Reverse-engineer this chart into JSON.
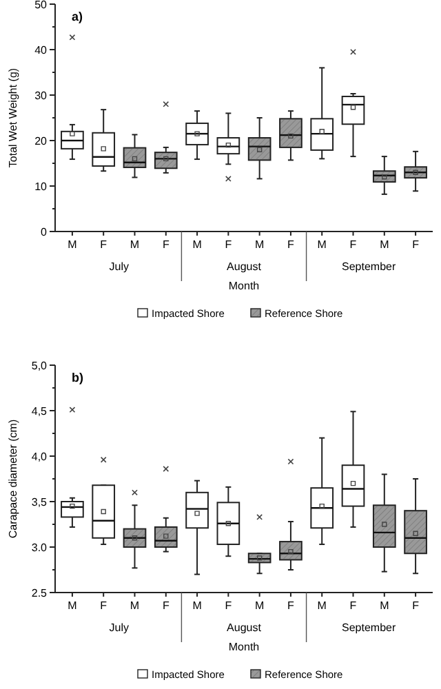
{
  "chart_data": [
    {
      "type": "box",
      "title": "a)",
      "xlabel": "Month",
      "ylabel": "Total Wet Weight (g)",
      "categories": [
        "M",
        "F",
        "M",
        "F",
        "M",
        "F",
        "M",
        "F",
        "M",
        "F",
        "M",
        "F"
      ],
      "annotations": [
        "July",
        "August",
        "September"
      ],
      "ylim": [
        0,
        50
      ],
      "yticks": [
        0,
        {
          "value": 5,
          "label": null
        },
        10,
        {
          "value": 15,
          "label": null
        },
        20,
        {
          "value": 25,
          "label": null
        },
        30,
        {
          "value": 35,
          "label": null
        },
        40,
        {
          "value": 45,
          "label": null
        },
        50
      ],
      "legend": "bottom",
      "marker": "cross",
      "series": [
        {
          "name": "Impacted Shore",
          "color": "#ffffff",
          "boxes": [
            {
              "low": 15.9,
              "q1": 18.2,
              "median": 20,
              "q3": 22,
              "high": 23.5,
              "mean": 21.5,
              "outliers": [
                42.7
              ]
            },
            {
              "low": 13.3,
              "q1": 14.4,
              "median": 16.4,
              "q3": 21.7,
              "high": 26.8,
              "mean": 18.2
            },
            null,
            null,
            {
              "low": 15.9,
              "q1": 19.1,
              "median": 21.5,
              "q3": 23.8,
              "high": 26.5,
              "mean": 21.5
            },
            {
              "low": 14.8,
              "q1": 17.1,
              "median": 18.7,
              "q3": 20.6,
              "high": 26,
              "mean": 19,
              "outliers": [
                11.6
              ]
            },
            null,
            null,
            {
              "low": 16,
              "q1": 17.9,
              "median": 21.5,
              "q3": 24.8,
              "high": 36,
              "mean": 22
            },
            {
              "low": 16.5,
              "q1": 23.6,
              "median": 27.9,
              "q3": 29.7,
              "high": 30.3,
              "mean": 27.3,
              "outliers": [
                39.5
              ]
            },
            null,
            null
          ]
        },
        {
          "name": "Reference Shore",
          "color": "#999999",
          "boxes": [
            null,
            null,
            {
              "low": 11.9,
              "q1": 14.1,
              "median": 15.2,
              "q3": 18.4,
              "high": 21.3,
              "mean": 16
            },
            {
              "low": 12.9,
              "q1": 13.9,
              "median": 16,
              "q3": 17.4,
              "high": 18.5,
              "mean": 16,
              "outliers": [
                28
              ]
            },
            null,
            null,
            {
              "low": 11.6,
              "q1": 15.7,
              "median": 18.7,
              "q3": 20.6,
              "high": 25,
              "mean": 18
            },
            {
              "low": 15.7,
              "q1": 18.5,
              "median": 21.2,
              "q3": 24.8,
              "high": 26.5,
              "mean": 21
            },
            null,
            null,
            {
              "low": 8.2,
              "q1": 10.9,
              "median": 12.3,
              "q3": 13.3,
              "high": 16.5,
              "mean": 12
            },
            {
              "low": 8.9,
              "q1": 11.8,
              "median": 13,
              "q3": 14.2,
              "high": 17.6,
              "mean": 13
            }
          ]
        }
      ]
    },
    {
      "type": "box",
      "title": "b)",
      "xlabel": "Month",
      "ylabel": "Carapace diameter (cm)",
      "categories": [
        "M",
        "F",
        "M",
        "F",
        "M",
        "F",
        "M",
        "F",
        "M",
        "F",
        "M",
        "F"
      ],
      "annotations": [
        "July",
        "August",
        "September"
      ],
      "ylim": [
        2.5,
        5
      ],
      "yticks": [
        {
          "value": 2.5,
          "label": "2.5"
        },
        {
          "value": 2.75,
          "label": null
        },
        {
          "value": 3,
          "label": "3.0"
        },
        {
          "value": 3.25,
          "label": null
        },
        {
          "value": 3.5,
          "label": "3,5"
        },
        {
          "value": 3.75,
          "label": null
        },
        {
          "value": 4,
          "label": "4,0"
        },
        {
          "value": 4.25,
          "label": null
        },
        {
          "value": 4.5,
          "label": "4,5"
        },
        {
          "value": 4.75,
          "label": null
        },
        {
          "value": 5,
          "label": "5,0"
        }
      ],
      "legend": "bottom",
      "marker": "cross",
      "series": [
        {
          "name": "Impacted Shore",
          "color": "#ffffff",
          "boxes": [
            {
              "low": 3.22,
              "q1": 3.33,
              "median": 3.44,
              "q3": 3.5,
              "high": 3.54,
              "mean": 3.45,
              "outliers": [
                4.51
              ]
            },
            {
              "low": 3.03,
              "q1": 3.1,
              "median": 3.29,
              "q3": 3.68,
              "high": 3.68,
              "mean": 3.39,
              "outliers": [
                3.96
              ]
            },
            null,
            null,
            {
              "low": 2.7,
              "q1": 3.21,
              "median": 3.42,
              "q3": 3.6,
              "high": 3.73,
              "mean": 3.37
            },
            {
              "low": 2.9,
              "q1": 3.03,
              "median": 3.26,
              "q3": 3.49,
              "high": 3.66,
              "mean": 3.26
            },
            null,
            null,
            {
              "low": 3.03,
              "q1": 3.21,
              "median": 3.43,
              "q3": 3.65,
              "high": 4.2,
              "mean": 3.45
            },
            {
              "low": 3.22,
              "q1": 3.45,
              "median": 3.64,
              "q3": 3.9,
              "high": 4.49,
              "mean": 3.7
            },
            null,
            null
          ]
        },
        {
          "name": "Reference Shore",
          "color": "#999999",
          "boxes": [
            null,
            null,
            {
              "low": 2.77,
              "q1": 3,
              "median": 3.1,
              "q3": 3.2,
              "high": 3.46,
              "mean": 3.1,
              "outliers": [
                3.6
              ]
            },
            {
              "low": 2.95,
              "q1": 3,
              "median": 3.07,
              "q3": 3.22,
              "high": 3.32,
              "mean": 3.12,
              "outliers": [
                3.86
              ]
            },
            null,
            null,
            {
              "low": 2.71,
              "q1": 2.83,
              "median": 2.87,
              "q3": 2.93,
              "high": 2.93,
              "mean": 2.88,
              "outliers": [
                3.33
              ]
            },
            {
              "low": 2.75,
              "q1": 2.86,
              "median": 2.93,
              "q3": 3.06,
              "high": 3.28,
              "mean": 2.95,
              "outliers": [
                3.94
              ]
            },
            null,
            null,
            {
              "low": 2.73,
              "q1": 3,
              "median": 3.16,
              "q3": 3.46,
              "high": 3.8,
              "mean": 3.25
            },
            {
              "low": 2.71,
              "q1": 2.93,
              "median": 3.1,
              "q3": 3.4,
              "high": 3.75,
              "mean": 3.15
            }
          ]
        }
      ]
    }
  ]
}
